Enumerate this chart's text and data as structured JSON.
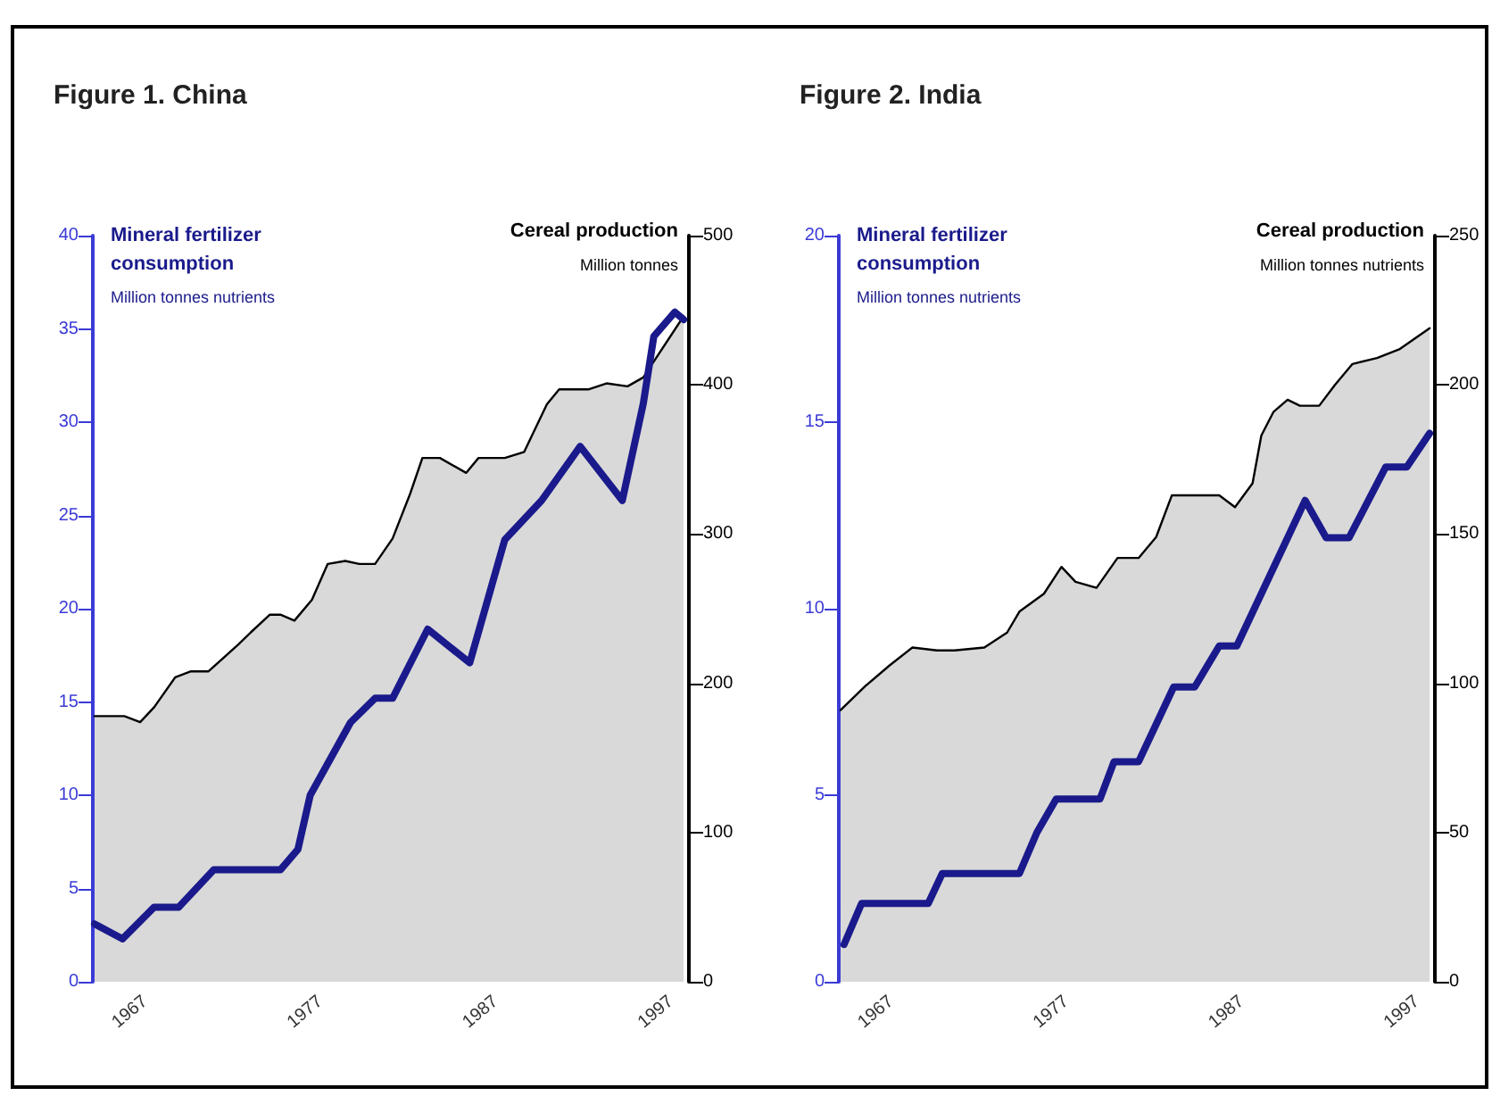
{
  "chart_data": [
    {
      "type": "line",
      "title": "Figure 1. China",
      "ylabel": "Mineral fertilizer consumption",
      "y2label": "Cereal production",
      "annotations": [
        "Million tonnes nutrients",
        "Million tonnes"
      ],
      "xlim": [
        1964,
        1998
      ],
      "xticks": [
        1967,
        1977,
        1987,
        1997
      ],
      "ylim": [
        0,
        40
      ],
      "yticks": [
        0,
        5,
        10,
        15,
        20,
        25,
        30,
        35,
        40
      ],
      "y2lim": [
        0,
        500
      ],
      "y2ticks": [
        0,
        100,
        200,
        300,
        400,
        500
      ],
      "grid": false,
      "marker": "none",
      "series": [
        {
          "type": "area",
          "axis": "y2",
          "color": "#d9d9d9",
          "x": [
            1964.1,
            1965.8,
            1966.7,
            1967.5,
            1968.7,
            1969.6,
            1970.6,
            1972.3,
            1973.0,
            1974.1,
            1974.7,
            1975.5,
            1976.5,
            1977.4,
            1978.4,
            1979.2,
            1980.1,
            1981.1,
            1982.1,
            1982.8,
            1983.8,
            1985.3,
            1986.0,
            1987.5,
            1988.6,
            1989.9,
            1990.6,
            1992.3,
            1993.3,
            1994.5,
            1995.4,
            1997.7
          ],
          "values": [
            178,
            178,
            174,
            184,
            204,
            208,
            208,
            226,
            234,
            246,
            246,
            242,
            256,
            280,
            282,
            280,
            280,
            297,
            327,
            351,
            351,
            341,
            351,
            351,
            355,
            387,
            397,
            397,
            401,
            399,
            405,
            446
          ]
        },
        {
          "type": "line",
          "color": "#1a1a8c",
          "x": [
            1964.1,
            1965.7,
            1967.5,
            1968.9,
            1970.9,
            1974.7,
            1975.7,
            1976.4,
            1978.7,
            1980.1,
            1981.1,
            1983.1,
            1985.5,
            1987.5,
            1989.6,
            1991.8,
            1994.2,
            1995.4,
            1996.0,
            1997.2,
            1997.7
          ],
          "values": [
            3.1,
            2.3,
            4.0,
            4.0,
            6.0,
            6.0,
            7.1,
            10.0,
            13.9,
            15.2,
            15.2,
            18.9,
            17.1,
            23.7,
            25.8,
            28.7,
            25.8,
            31.0,
            34.6,
            35.9,
            35.5
          ]
        }
      ]
    },
    {
      "type": "line",
      "title": "Figure 2. India",
      "ylabel": "Mineral fertilizer consumption",
      "y2label": "Cereal production",
      "annotations": [
        "Million tonnes nutrients",
        "Million tonnes nutrients"
      ],
      "xlim": [
        1964,
        1998
      ],
      "xticks": [
        1967,
        1977,
        1987,
        1997
      ],
      "ylim": [
        0,
        20
      ],
      "yticks": [
        0,
        5,
        10,
        15,
        20
      ],
      "y2lim": [
        0,
        250
      ],
      "y2ticks": [
        0,
        50,
        100,
        150,
        200,
        250
      ],
      "grid": false,
      "marker": "none",
      "series": [
        {
          "type": "area",
          "axis": "y2",
          "color": "#d9d9d9",
          "x": [
            1964.1,
            1965.5,
            1966.9,
            1968.2,
            1969.6,
            1970.6,
            1972.3,
            1973.6,
            1974.3,
            1975.7,
            1976.7,
            1977.5,
            1978.7,
            1979.9,
            1981.1,
            1982.1,
            1983.0,
            1985.7,
            1986.6,
            1987.6,
            1988.1,
            1988.8,
            1989.6,
            1990.3,
            1991.4,
            1992.3,
            1993.3,
            1994.7,
            1996.0,
            1997.7
          ],
          "values": [
            91,
            99,
            106,
            112,
            111,
            111,
            112,
            117,
            124,
            130,
            139,
            134,
            132,
            142,
            142,
            149,
            163,
            163,
            159,
            167,
            183,
            191,
            195,
            193,
            193,
            200,
            207,
            209,
            212,
            219
          ]
        },
        {
          "type": "line",
          "color": "#1a1a8c",
          "x": [
            1964.3,
            1965.3,
            1969.1,
            1969.9,
            1974.3,
            1975.3,
            1976.4,
            1978.9,
            1979.7,
            1981.1,
            1982.3,
            1983.1,
            1984.3,
            1985.7,
            1986.7,
            1990.6,
            1991.8,
            1993.1,
            1995.2,
            1996.4,
            1997.7
          ],
          "values": [
            1.0,
            2.1,
            2.1,
            2.9,
            2.9,
            4.0,
            4.9,
            4.9,
            5.9,
            5.9,
            7.1,
            7.9,
            7.9,
            9.0,
            9.0,
            12.9,
            11.9,
            11.9,
            13.8,
            13.8,
            14.7
          ]
        }
      ]
    }
  ]
}
